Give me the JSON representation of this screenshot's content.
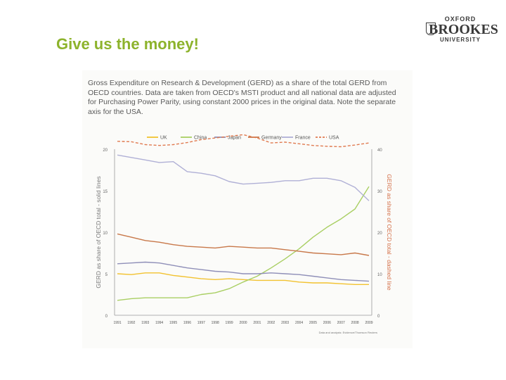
{
  "slide": {
    "title": "Give us the money!"
  },
  "logo": {
    "line1": "OXFORD",
    "line2": "BROOKES",
    "line3": "UNIVERSITY"
  },
  "figure": {
    "caption": "Gross Expenditure on Research & Development (GERD) as a share of the total GERD from OECD countries. Data are taken from OECD's MSTI product and all national data are adjusted for Purchasing Power Parity, using constant 2000 prices in the original data. Note the separate axis for the USA.",
    "source_note": "Data and analysis: Evidence/Thomson Reuters"
  },
  "chart_data": {
    "type": "line",
    "x": [
      "1991",
      "1992",
      "1993",
      "1994",
      "1995",
      "1996",
      "1997",
      "1998",
      "1999",
      "2000",
      "2001",
      "2002",
      "2003",
      "2004",
      "2005",
      "2006",
      "2007",
      "2008",
      "2009"
    ],
    "ylabel": "GERD as share of OECD total - solid lines",
    "ylabel_right": "GERD as share of OECD total - dashed line",
    "ylim": [
      0,
      20
    ],
    "yticks": [
      0,
      5,
      10,
      15,
      20
    ],
    "ylim_right": [
      0,
      40
    ],
    "yticks_right": [
      0,
      10,
      20,
      30,
      40
    ],
    "legend_position": "top",
    "grid": false,
    "series": [
      {
        "name": "UK",
        "color": "#f2c230",
        "dashed": false,
        "axis": "left",
        "values": [
          5.0,
          4.9,
          5.1,
          5.1,
          4.8,
          4.6,
          4.4,
          4.3,
          4.4,
          4.3,
          4.2,
          4.2,
          4.2,
          4.0,
          3.9,
          3.9,
          3.8,
          3.7,
          3.7
        ]
      },
      {
        "name": "China",
        "color": "#a9cf63",
        "dashed": false,
        "axis": "left",
        "values": [
          1.8,
          2.0,
          2.1,
          2.1,
          2.1,
          2.1,
          2.5,
          2.7,
          3.2,
          4.0,
          4.7,
          5.7,
          6.8,
          8.0,
          9.4,
          10.6,
          11.6,
          12.8,
          15.5
        ]
      },
      {
        "name": "Japan",
        "color": "#8f8fb8",
        "dashed": false,
        "axis": "left",
        "values": [
          6.2,
          6.3,
          6.4,
          6.3,
          6.0,
          5.7,
          5.5,
          5.3,
          5.2,
          5.0,
          5.0,
          5.1,
          5.0,
          4.9,
          4.7,
          4.5,
          4.3,
          4.2,
          4.1
        ]
      },
      {
        "name": "Germany",
        "color": "#c8784a",
        "dashed": false,
        "axis": "left",
        "values": [
          9.8,
          9.4,
          9.0,
          8.8,
          8.5,
          8.3,
          8.2,
          8.1,
          8.3,
          8.2,
          8.1,
          8.1,
          7.9,
          7.7,
          7.5,
          7.4,
          7.3,
          7.5,
          7.2
        ]
      },
      {
        "name": "France",
        "color": "#b0b0d6",
        "dashed": false,
        "axis": "left",
        "values": [
          19.3,
          19.0,
          18.7,
          18.4,
          18.5,
          17.3,
          17.1,
          16.8,
          16.1,
          15.8,
          15.9,
          16.0,
          16.2,
          16.2,
          16.5,
          16.5,
          16.2,
          15.4,
          13.8
        ]
      },
      {
        "name": "USA",
        "color": "#e07a50",
        "dashed": true,
        "axis": "right",
        "values": [
          41.9,
          41.8,
          41.1,
          40.9,
          41.1,
          41.6,
          42.3,
          42.7,
          43.1,
          43.5,
          42.7,
          41.5,
          41.7,
          41.3,
          40.9,
          40.7,
          40.6,
          41.0,
          41.5
        ]
      }
    ]
  }
}
